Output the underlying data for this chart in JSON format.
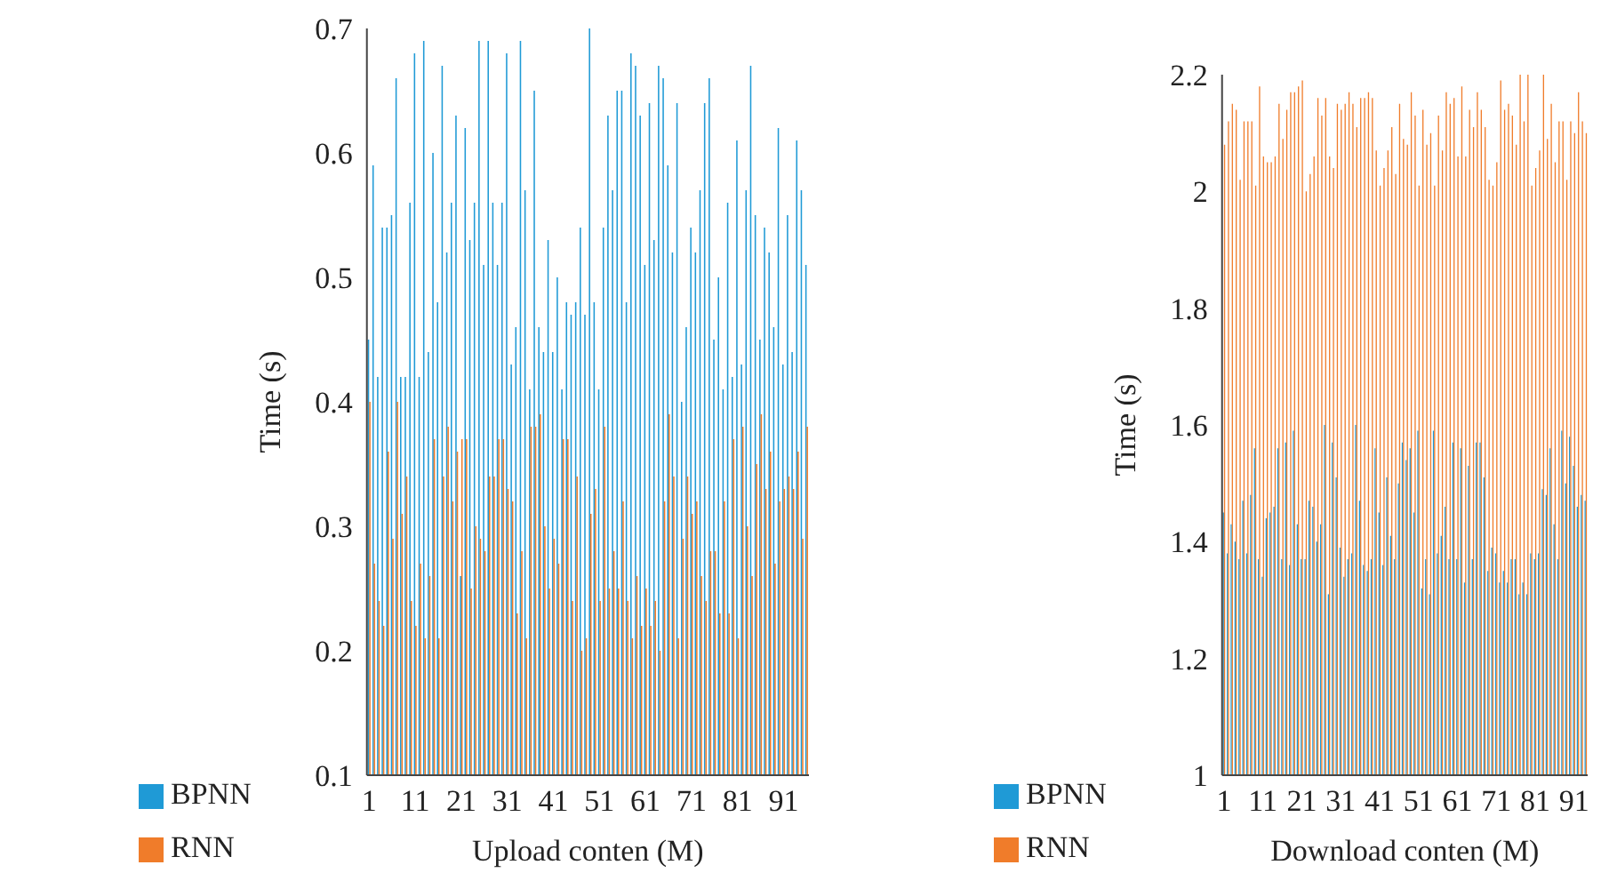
{
  "chart_data": [
    {
      "type": "bar",
      "xlabel": "Upload conten (M)",
      "ylabel": "Time (s)",
      "ylim": [
        0.1,
        0.7
      ],
      "yticks": [
        0.1,
        0.2,
        0.3,
        0.4,
        0.5,
        0.6,
        0.7
      ],
      "legend": "bottom",
      "grid": false,
      "categories": [
        "1",
        null,
        null,
        null,
        null,
        null,
        null,
        null,
        null,
        null,
        "11",
        null,
        null,
        null,
        null,
        null,
        null,
        null,
        null,
        null,
        "21",
        null,
        null,
        null,
        null,
        null,
        null,
        null,
        null,
        null,
        "31",
        null,
        null,
        null,
        null,
        null,
        null,
        null,
        null,
        null,
        "41",
        null,
        null,
        null,
        null,
        null,
        null,
        null,
        null,
        null,
        "51",
        null,
        null,
        null,
        null,
        null,
        null,
        null,
        null,
        null,
        "61",
        null,
        null,
        null,
        null,
        null,
        null,
        null,
        null,
        null,
        "71",
        null,
        null,
        null,
        null,
        null,
        null,
        null,
        null,
        null,
        "81",
        null,
        null,
        null,
        null,
        null,
        null,
        null,
        null,
        null,
        "91",
        null,
        null,
        null,
        null,
        null
      ],
      "series": [
        {
          "name": "BPNN",
          "color": "#1f9ad6",
          "values": [
            0.45,
            0.59,
            0.42,
            0.54,
            0.54,
            0.55,
            0.66,
            0.42,
            0.42,
            0.56,
            0.68,
            0.42,
            0.69,
            0.44,
            0.6,
            0.48,
            0.67,
            0.52,
            0.56,
            0.63,
            0.26,
            0.62,
            0.53,
            0.56,
            0.69,
            0.51,
            0.69,
            0.56,
            0.51,
            0.56,
            0.68,
            0.43,
            0.46,
            0.69,
            0.57,
            0.41,
            0.65,
            0.46,
            0.44,
            0.53,
            0.44,
            0.5,
            0.41,
            0.48,
            0.47,
            0.48,
            0.54,
            0.47,
            0.7,
            0.48,
            0.41,
            0.54,
            0.63,
            0.57,
            0.65,
            0.65,
            0.48,
            0.68,
            0.67,
            0.63,
            0.51,
            0.64,
            0.53,
            0.67,
            0.66,
            0.59,
            0.52,
            0.64,
            0.4,
            0.46,
            0.54,
            0.52,
            0.57,
            0.64,
            0.66,
            0.45,
            0.5,
            0.41,
            0.56,
            0.42,
            0.61,
            0.43,
            0.57,
            0.67,
            0.55,
            0.45,
            0.54,
            0.52,
            0.46,
            0.62,
            0.43,
            0.55,
            0.44,
            0.61,
            0.57,
            0.51
          ]
        },
        {
          "name": "RNN",
          "color": "#f07c2a",
          "values": [
            0.4,
            0.27,
            0.24,
            0.22,
            0.36,
            0.29,
            0.4,
            0.31,
            0.34,
            0.24,
            0.22,
            0.27,
            0.21,
            0.26,
            0.37,
            0.21,
            0.34,
            0.38,
            0.32,
            0.36,
            0.37,
            0.37,
            0.25,
            0.3,
            0.29,
            0.28,
            0.34,
            0.34,
            0.37,
            0.37,
            0.33,
            0.32,
            0.23,
            0.28,
            0.21,
            0.38,
            0.38,
            0.39,
            0.3,
            0.25,
            0.29,
            0.27,
            0.37,
            0.37,
            0.24,
            0.34,
            0.2,
            0.21,
            0.31,
            0.33,
            0.24,
            0.38,
            0.25,
            0.28,
            0.25,
            0.32,
            0.24,
            0.21,
            0.26,
            0.22,
            0.25,
            0.22,
            0.24,
            0.2,
            0.32,
            0.39,
            0.34,
            0.21,
            0.29,
            0.34,
            0.31,
            0.32,
            0.26,
            0.24,
            0.28,
            0.28,
            0.23,
            0.32,
            0.23,
            0.37,
            0.21,
            0.38,
            0.3,
            0.26,
            0.35,
            0.39,
            0.33,
            0.36,
            0.27,
            0.32,
            0.33,
            0.34,
            0.33,
            0.36,
            0.29,
            0.38
          ]
        }
      ]
    },
    {
      "type": "bar",
      "xlabel": "Download conten (M)",
      "ylabel": "Time (s)",
      "ylim": [
        1,
        2.2
      ],
      "yticks": [
        1,
        1.2,
        1.4,
        1.6,
        1.8,
        2,
        2.2
      ],
      "legend": "bottom",
      "grid": false,
      "categories": [
        "1",
        null,
        null,
        null,
        null,
        null,
        null,
        null,
        null,
        null,
        "11",
        null,
        null,
        null,
        null,
        null,
        null,
        null,
        null,
        null,
        "21",
        null,
        null,
        null,
        null,
        null,
        null,
        null,
        null,
        null,
        "31",
        null,
        null,
        null,
        null,
        null,
        null,
        null,
        null,
        null,
        "41",
        null,
        null,
        null,
        null,
        null,
        null,
        null,
        null,
        null,
        "51",
        null,
        null,
        null,
        null,
        null,
        null,
        null,
        null,
        null,
        "61",
        null,
        null,
        null,
        null,
        null,
        null,
        null,
        null,
        null,
        "71",
        null,
        null,
        null,
        null,
        null,
        null,
        null,
        null,
        null,
        "81",
        null,
        null,
        null,
        null,
        null,
        null,
        null,
        null,
        null,
        "91",
        null,
        null,
        null
      ],
      "series": [
        {
          "name": "BPNN",
          "color": "#1f9ad6",
          "values": [
            1.45,
            1.38,
            1.43,
            1.4,
            1.37,
            1.47,
            1.38,
            1.48,
            1.56,
            1.37,
            1.34,
            1.44,
            1.45,
            1.46,
            1.56,
            1.37,
            1.57,
            1.36,
            1.59,
            1.43,
            1.37,
            1.37,
            1.47,
            1.46,
            1.4,
            1.43,
            1.6,
            1.31,
            1.57,
            1.51,
            1.39,
            1.34,
            1.37,
            1.38,
            1.6,
            1.47,
            1.36,
            1.35,
            1.37,
            1.56,
            1.45,
            1.36,
            1.51,
            1.41,
            1.37,
            1.5,
            1.57,
            1.54,
            1.56,
            1.45,
            1.59,
            1.32,
            1.37,
            1.31,
            1.59,
            1.38,
            1.41,
            1.46,
            1.37,
            1.57,
            1.37,
            1.56,
            1.33,
            1.53,
            1.37,
            1.57,
            1.57,
            1.51,
            1.35,
            1.39,
            1.38,
            1.33,
            1.35,
            1.33,
            1.37,
            1.37,
            1.31,
            1.33,
            1.31,
            1.38,
            1.37,
            1.38,
            1.49,
            1.48,
            1.56,
            1.43,
            1.37,
            1.59,
            1.5,
            1.58,
            1.53,
            1.46,
            1.48,
            1.47
          ]
        },
        {
          "name": "RNN",
          "color": "#f07c2a",
          "values": [
            2.08,
            2.12,
            2.15,
            2.14,
            2.02,
            2.12,
            2.12,
            2.12,
            2.01,
            2.18,
            2.06,
            2.05,
            2.05,
            2.06,
            2.15,
            2.09,
            2.14,
            2.17,
            2.17,
            2.18,
            2.19,
            2,
            2.03,
            2.06,
            2.16,
            2.13,
            2.16,
            2.06,
            2.04,
            2.15,
            2.14,
            2.15,
            2.17,
            2.15,
            2.11,
            2.16,
            2.16,
            2.17,
            2.16,
            2.07,
            2.01,
            2.04,
            2.07,
            2.11,
            2.03,
            2.15,
            2.09,
            2.08,
            2.17,
            2.13,
            2.01,
            2.14,
            2.08,
            2.1,
            2.01,
            2.13,
            2.07,
            2.17,
            2.15,
            2.16,
            2.06,
            2.18,
            2.06,
            2.14,
            2.11,
            2.17,
            2.14,
            2.11,
            2.02,
            2.01,
            2.05,
            2.19,
            2.14,
            2.15,
            2.13,
            2.08,
            2.2,
            2.12,
            2.2,
            2.01,
            2.04,
            2.07,
            2.2,
            2.09,
            2.15,
            2.05,
            2.12,
            2.12,
            2.02,
            2.12,
            2.1,
            2.17,
            2.12,
            2.1
          ]
        }
      ]
    }
  ]
}
